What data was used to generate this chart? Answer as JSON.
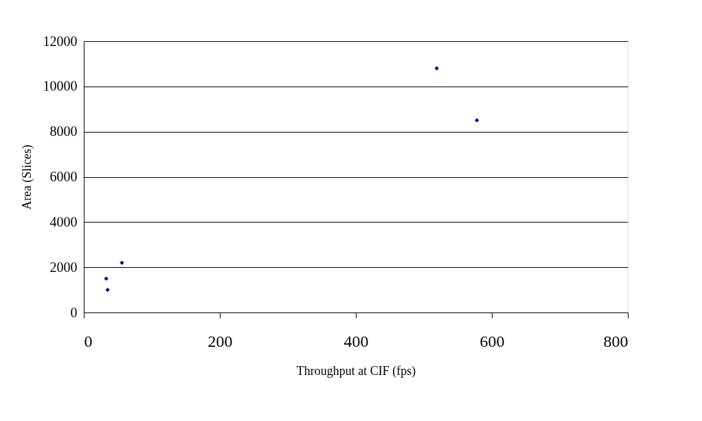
{
  "chart_data": {
    "type": "scatter",
    "xlabel": "Throughput at CIF (fps)",
    "ylabel": "Area (Slices)",
    "x": [
      33,
      35,
      56,
      519,
      578
    ],
    "series": [
      {
        "color": "#000080",
        "values": [
          1500,
          1000,
          2200,
          10800,
          8500
        ]
      }
    ],
    "xlim": [
      0,
      800
    ],
    "xticks": [
      0,
      200,
      400,
      600,
      800
    ],
    "ylim": [
      0,
      12000
    ],
    "yticks": [
      0,
      2000,
      4000,
      6000,
      8000,
      10000,
      12000
    ],
    "grid": "y",
    "marker": "diamond"
  }
}
